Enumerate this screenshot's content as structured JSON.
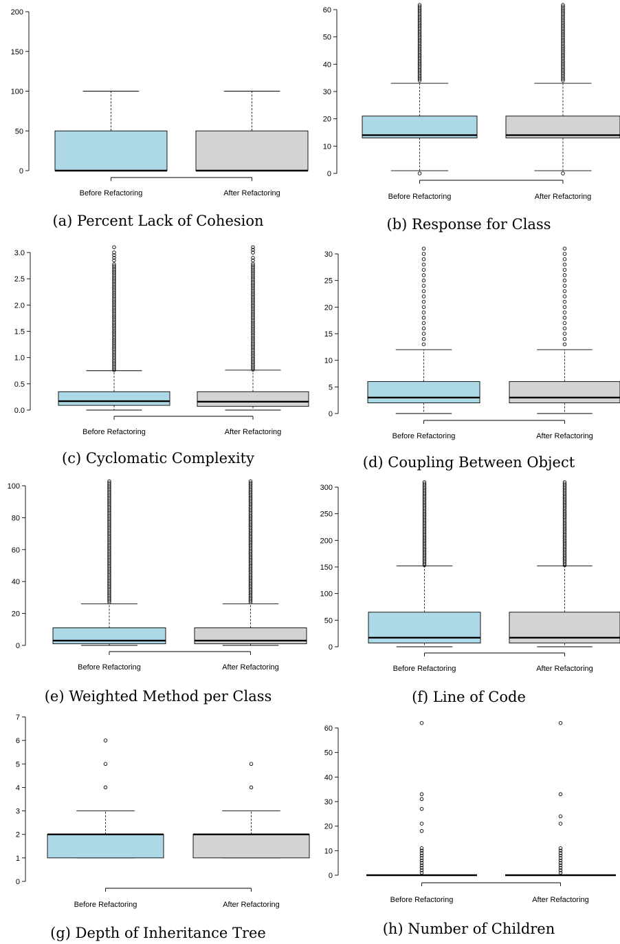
{
  "colors": {
    "before": "#add8e6",
    "after": "#d3d3d3"
  },
  "chart_data": [
    {
      "id": "a",
      "type": "box",
      "title": "(a) Percent Lack of Cohesion",
      "categories": [
        "Before Refactoring",
        "After Refactoring"
      ],
      "ylim": [
        0,
        200
      ],
      "yticks": [
        0,
        50,
        100,
        150,
        200
      ],
      "boxes": [
        {
          "whisker_low": 0,
          "q1": 0,
          "median": 0,
          "q3": 50,
          "whisker_high": 100,
          "outliers": []
        },
        {
          "whisker_low": 0,
          "q1": 0,
          "median": 0,
          "q3": 50,
          "whisker_high": 100,
          "outliers": []
        }
      ]
    },
    {
      "id": "b",
      "type": "box",
      "title": "(b) Response for Class",
      "categories": [
        "Before Refactoring",
        "After Refactoring"
      ],
      "ylim": [
        0,
        60
      ],
      "yticks": [
        0,
        10,
        20,
        30,
        40,
        50,
        60
      ],
      "boxes": [
        {
          "whisker_low": 1,
          "q1": 13,
          "median": 14,
          "q3": 21,
          "whisker_high": 33,
          "outliers": [
            0
          ],
          "outlier_range": [
            34,
            62
          ]
        },
        {
          "whisker_low": 1,
          "q1": 13,
          "median": 14,
          "q3": 21,
          "whisker_high": 33,
          "outliers": [
            0
          ],
          "outlier_range": [
            34,
            62
          ]
        }
      ]
    },
    {
      "id": "c",
      "type": "box",
      "title": "(c) Cyclomatic Complexity",
      "categories": [
        "Before Refactoring",
        "After Refactoring"
      ],
      "ylim": [
        0,
        3.0
      ],
      "yticks": [
        "0.0",
        "0.5",
        "1.0",
        "1.5",
        "2.0",
        "2.5",
        "3.0"
      ],
      "boxes": [
        {
          "whisker_low": 0,
          "q1": 0.09,
          "median": 0.17,
          "q3": 0.35,
          "whisker_high": 0.75,
          "outliers": [
            2.85,
            2.9,
            2.95,
            3.0,
            3.1
          ],
          "outlier_range": [
            0.76,
            2.8
          ]
        },
        {
          "whisker_low": 0,
          "q1": 0.07,
          "median": 0.16,
          "q3": 0.35,
          "whisker_high": 0.76,
          "outliers": [
            2.85,
            2.9,
            3.0,
            3.05,
            3.1
          ],
          "outlier_range": [
            0.77,
            2.8
          ]
        }
      ]
    },
    {
      "id": "d",
      "type": "box",
      "title": "(d) Coupling Between Object",
      "categories": [
        "Before Refactoring",
        "After Refactoring"
      ],
      "ylim": [
        0,
        30
      ],
      "yticks": [
        0,
        5,
        10,
        15,
        20,
        25,
        30
      ],
      "boxes": [
        {
          "whisker_low": 0,
          "q1": 2,
          "median": 3,
          "q3": 6,
          "whisker_high": 12,
          "outliers": [
            13,
            14,
            15,
            16,
            17,
            18,
            19,
            20,
            21,
            22,
            23,
            24,
            25,
            26,
            27,
            28,
            29,
            30,
            31
          ]
        },
        {
          "whisker_low": 0,
          "q1": 2,
          "median": 3,
          "q3": 6,
          "whisker_high": 12,
          "outliers": [
            13,
            14,
            15,
            16,
            17,
            18,
            19,
            20,
            21,
            22,
            23,
            24,
            25,
            26,
            27,
            28,
            29,
            30,
            31
          ]
        }
      ]
    },
    {
      "id": "e",
      "type": "box",
      "title": "(e) Weighted Method per Class",
      "categories": [
        "Before Refactoring",
        "After Refactoring"
      ],
      "ylim": [
        0,
        100
      ],
      "yticks": [
        0,
        20,
        40,
        60,
        80,
        100
      ],
      "boxes": [
        {
          "whisker_low": 0,
          "q1": 1,
          "median": 3,
          "q3": 11,
          "whisker_high": 26,
          "outliers": [],
          "outlier_range": [
            27,
            103
          ]
        },
        {
          "whisker_low": 0,
          "q1": 1,
          "median": 3,
          "q3": 11,
          "whisker_high": 26,
          "outliers": [],
          "outlier_range": [
            27,
            103
          ]
        }
      ]
    },
    {
      "id": "f",
      "type": "box",
      "title": "(f) Line of Code",
      "categories": [
        "Before Refactoring",
        "After Refactoring"
      ],
      "ylim": [
        0,
        300
      ],
      "yticks": [
        0,
        50,
        100,
        150,
        200,
        250,
        300
      ],
      "boxes": [
        {
          "whisker_low": 0,
          "q1": 7,
          "median": 17,
          "q3": 65,
          "whisker_high": 152,
          "outliers": [],
          "outlier_range": [
            153,
            310
          ]
        },
        {
          "whisker_low": 0,
          "q1": 7,
          "median": 17,
          "q3": 65,
          "whisker_high": 152,
          "outliers": [],
          "outlier_range": [
            153,
            310
          ]
        }
      ]
    },
    {
      "id": "g",
      "type": "box",
      "title": "(g) Depth of Inheritance Tree",
      "categories": [
        "Before Refactoring",
        "After Refactoring"
      ],
      "ylim": [
        0,
        7
      ],
      "yticks": [
        0,
        1,
        2,
        3,
        4,
        5,
        6,
        7
      ],
      "boxes": [
        {
          "whisker_low": 1,
          "q1": 1,
          "median": 2,
          "q3": 2,
          "whisker_high": 3,
          "outliers": [
            4,
            5,
            6
          ]
        },
        {
          "whisker_low": 1,
          "q1": 1,
          "median": 2,
          "q3": 2,
          "whisker_high": 3,
          "outliers": [
            4,
            5
          ]
        }
      ]
    },
    {
      "id": "h",
      "type": "box",
      "title": "(h) Number of Children",
      "categories": [
        "Before Refactoring",
        "After Refactoring"
      ],
      "ylim": [
        0,
        60
      ],
      "yticks": [
        0,
        10,
        20,
        30,
        40,
        50,
        60
      ],
      "boxes": [
        {
          "whisker_low": 0,
          "q1": 0,
          "median": 0,
          "q3": 0,
          "whisker_high": 0,
          "outliers": [
            1,
            2,
            3,
            4,
            5,
            6,
            7,
            8,
            9,
            10,
            11,
            18,
            21,
            27,
            31,
            33,
            62
          ]
        },
        {
          "whisker_low": 0,
          "q1": 0,
          "median": 0,
          "q3": 0,
          "whisker_high": 0,
          "outliers": [
            1,
            2,
            3,
            4,
            5,
            6,
            7,
            8,
            9,
            10,
            11,
            21,
            24,
            33,
            62
          ]
        }
      ]
    }
  ]
}
